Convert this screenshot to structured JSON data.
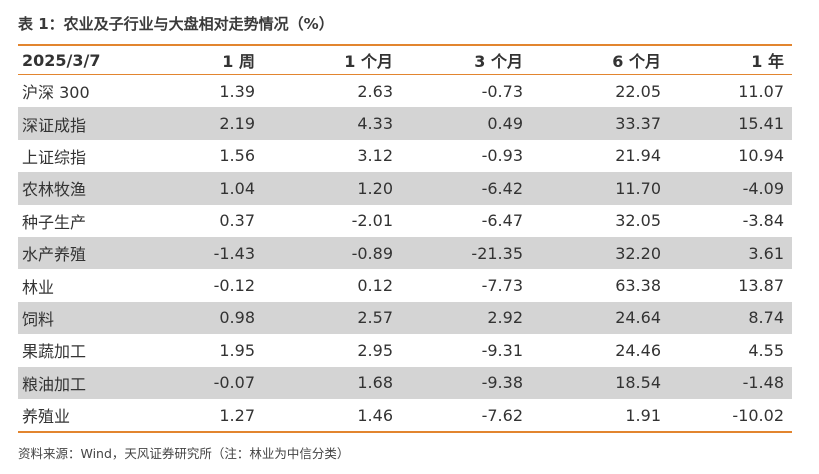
{
  "caption": "表 1：农业及子行业与大盘相对走势情况（%）",
  "table": {
    "headers": [
      "2025/3/7",
      "1 周",
      "1 个月",
      "3 个月",
      "6 个月",
      "1 年"
    ],
    "rows": [
      [
        "沪深 300",
        "1.39",
        "2.63",
        "-0.73",
        "22.05",
        "11.07"
      ],
      [
        "深证成指",
        "2.19",
        "4.33",
        "0.49",
        "33.37",
        "15.41"
      ],
      [
        "上证综指",
        "1.56",
        "3.12",
        "-0.93",
        "21.94",
        "10.94"
      ],
      [
        "农林牧渔",
        "1.04",
        "1.20",
        "-6.42",
        "11.70",
        "-4.09"
      ],
      [
        "种子生产",
        "0.37",
        "-2.01",
        "-6.47",
        "32.05",
        "-3.84"
      ],
      [
        "水产养殖",
        "-1.43",
        "-0.89",
        "-21.35",
        "32.20",
        "3.61"
      ],
      [
        "林业",
        "-0.12",
        "0.12",
        "-7.73",
        "63.38",
        "13.87"
      ],
      [
        "饲料",
        "0.98",
        "2.57",
        "2.92",
        "24.64",
        "8.74"
      ],
      [
        "果蔬加工",
        "1.95",
        "2.95",
        "-9.31",
        "24.46",
        "4.55"
      ],
      [
        "粮油加工",
        "-0.07",
        "1.68",
        "-9.38",
        "18.54",
        "-1.48"
      ],
      [
        "养殖业",
        "1.27",
        "1.46",
        "-7.62",
        "1.91",
        "-10.02"
      ]
    ]
  },
  "source": "资料来源：Wind，天风证券研究所（注：林业为中信分类）",
  "colors": {
    "accent_rule": "#e2852f",
    "shaded_row": "#d4d4d4",
    "text": "#333333"
  }
}
